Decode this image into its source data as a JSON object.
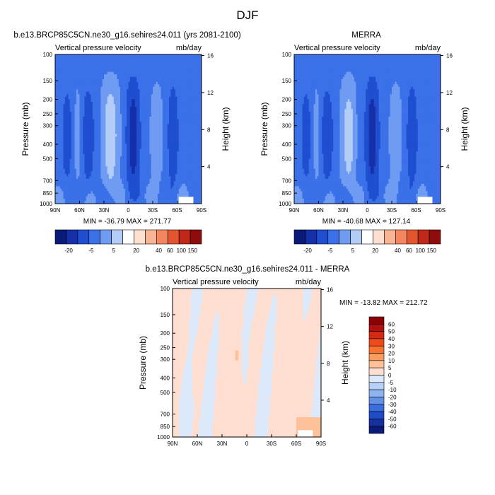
{
  "page_title": "DJF",
  "chart_data": [
    {
      "type": "heatmap",
      "title": "b.e13.BRCP85C5CN.ne30_g16.sehires24.011 (yrs 2081-2100)",
      "left_label": "Vertical pressure velocity",
      "right_label": "mb/day",
      "xlabel": "",
      "ylabel": "Pressure (mb)",
      "y2label": "Height (km)",
      "x_ticks": [
        "90N",
        "60N",
        "30N",
        "0",
        "30S",
        "60S",
        "90S"
      ],
      "y_ticks": [
        "100",
        "150",
        "200",
        "250",
        "300",
        "400",
        "500",
        "700",
        "850",
        "1000"
      ],
      "y2_ticks": [
        "4",
        "8",
        "12",
        "16"
      ],
      "y_scale": "log",
      "ylim": [
        1000,
        100
      ],
      "xlim": [
        "90N",
        "90S"
      ],
      "min_max": "MIN = -36.79   MAX = 271.77",
      "colorbar": {
        "orientation": "horizontal",
        "labels": [
          "-20",
          "-5",
          "5",
          "20",
          "40",
          "60",
          "100",
          "150"
        ],
        "colors": [
          "#0a1a78",
          "#1530a8",
          "#1f4fd0",
          "#3a70e8",
          "#6f9cf2",
          "#b4cdf7",
          "#ffffff",
          "#fde0cf",
          "#f9b496",
          "#f3865f",
          "#e2552f",
          "#c0281a",
          "#8e0c0c"
        ]
      }
    },
    {
      "type": "heatmap",
      "title": "MERRA",
      "left_label": "Vertical pressure velocity",
      "right_label": "mb/day",
      "xlabel": "",
      "ylabel": "Pressure (mb)",
      "y2label": "Height (km)",
      "x_ticks": [
        "90N",
        "60N",
        "30N",
        "0",
        "30S",
        "60S",
        "90S"
      ],
      "y_ticks": [
        "100",
        "150",
        "200",
        "250",
        "300",
        "400",
        "500",
        "700",
        "850",
        "1000"
      ],
      "y2_ticks": [
        "4",
        "8",
        "12",
        "16"
      ],
      "y_scale": "log",
      "ylim": [
        1000,
        100
      ],
      "xlim": [
        "90N",
        "90S"
      ],
      "min_max": "MIN = -40.68   MAX = 127.14",
      "colorbar": {
        "orientation": "horizontal",
        "labels": [
          "-20",
          "-5",
          "5",
          "20",
          "40",
          "60",
          "100",
          "150"
        ],
        "colors": [
          "#0a1a78",
          "#1530a8",
          "#1f4fd0",
          "#3a70e8",
          "#6f9cf2",
          "#b4cdf7",
          "#ffffff",
          "#fde0cf",
          "#f9b496",
          "#f3865f",
          "#e2552f",
          "#c0281a",
          "#8e0c0c"
        ]
      }
    },
    {
      "type": "heatmap",
      "title": "b.e13.BRCP85C5CN.ne30_g16.sehires24.011 - MERRA",
      "left_label": "Vertical pressure velocity",
      "right_label": "mb/day",
      "xlabel": "",
      "ylabel": "Pressure (mb)",
      "y2label": "Height (km)",
      "x_ticks": [
        "90N",
        "60N",
        "30N",
        "0",
        "30S",
        "60S",
        "90S"
      ],
      "y_ticks": [
        "100",
        "150",
        "200",
        "250",
        "300",
        "400",
        "500",
        "700",
        "850",
        "1000"
      ],
      "y2_ticks": [
        "4",
        "8",
        "12",
        "16"
      ],
      "y_scale": "log",
      "ylim": [
        1000,
        100
      ],
      "xlim": [
        "90N",
        "90S"
      ],
      "min_max": "MIN = -13.82   MAX = 212.72",
      "colorbar": {
        "orientation": "vertical",
        "labels": [
          "60",
          "50",
          "40",
          "30",
          "20",
          "10",
          "5",
          "0",
          "-5",
          "-10",
          "-20",
          "-30",
          "-40",
          "-50",
          "-60"
        ],
        "colors": [
          "#8b0000",
          "#b01010",
          "#d42a14",
          "#ee4a1a",
          "#f7732f",
          "#fb9c5e",
          "#fdc29a",
          "#feded0",
          "#dbe9fb",
          "#b6d0f6",
          "#8eb4f0",
          "#6192e6",
          "#3a6ede",
          "#1f4dc8",
          "#16309c",
          "#0a1a78"
        ]
      }
    }
  ]
}
